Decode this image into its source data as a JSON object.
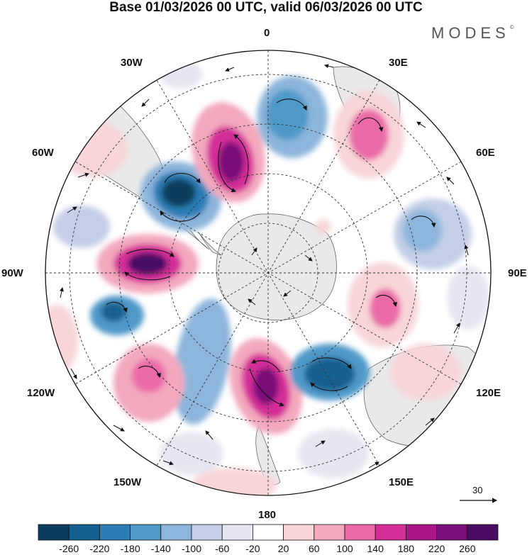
{
  "title": "Base 01/03/2026 00 UTC, valid 06/03/2026 00 UTC",
  "brand": "MODES",
  "brand_mark": "©",
  "longitude_labels": {
    "lon_0": "0",
    "lon_30e": "30E",
    "lon_60e": "60E",
    "lon_90e": "90E",
    "lon_120e": "120E",
    "lon_150e": "150E",
    "lon_180": "180",
    "lon_150w": "150W",
    "lon_120w": "120W",
    "lon_90w": "90W",
    "lon_60w": "60W",
    "lon_30w": "30W"
  },
  "vector_reference": "30",
  "colorbar": {
    "labels": [
      "-260",
      "-220",
      "-180",
      "-140",
      "-100",
      "-60",
      "-20",
      "20",
      "60",
      "100",
      "140",
      "180",
      "220",
      "260"
    ],
    "colors": [
      "#0d3d5c",
      "#14608f",
      "#2a7db5",
      "#4f99c9",
      "#8db6dc",
      "#c4cfe7",
      "#e6e6f2",
      "#ffffff",
      "#f8d5d7",
      "#f3a8bd",
      "#ea6aa8",
      "#d42f98",
      "#a81687",
      "#7a0f79",
      "#4a0c63"
    ]
  },
  "anomalies": [
    {
      "name": "low-south-atlantic-west",
      "value": -260
    },
    {
      "name": "high-south-atlantic",
      "value": 240
    },
    {
      "name": "low-weddell-north",
      "value": -180
    },
    {
      "name": "high-south-africa",
      "value": 160
    },
    {
      "name": "high-drake",
      "value": 260
    },
    {
      "name": "low-pacific-east",
      "value": -180
    },
    {
      "name": "high-pacific-mid",
      "value": 120
    },
    {
      "name": "high-ross",
      "value": 240
    },
    {
      "name": "low-tasman",
      "value": -220
    },
    {
      "name": "high-indian-south",
      "value": 150
    },
    {
      "name": "low-indian",
      "value": -110
    }
  ]
}
